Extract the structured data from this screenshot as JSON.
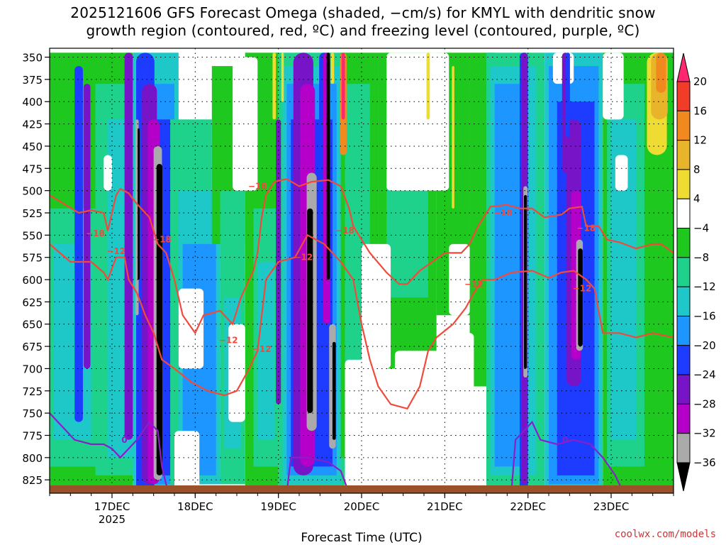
{
  "chart_data": {
    "type": "heatmap",
    "title_line1": "2025121606 GFS Forecast Omega (shaded, −cm/s) for KMYL with dendritic snow",
    "title_line2": "growth region (contoured, red, ºC) and freezing level (contoured, purple, ºC)",
    "xlabel": "Forecast Time (UTC)",
    "credit": "coolwx.com/models",
    "x_ticks": [
      {
        "label": "17DEC",
        "sub": "2025",
        "day": 17
      },
      {
        "label": "18DEC",
        "sub": "",
        "day": 18
      },
      {
        "label": "19DEC",
        "sub": "",
        "day": 19
      },
      {
        "label": "20DEC",
        "sub": "",
        "day": 20
      },
      {
        "label": "21DEC",
        "sub": "",
        "day": 21
      },
      {
        "label": "22DEC",
        "sub": "",
        "day": 22
      },
      {
        "label": "23DEC",
        "sub": "",
        "day": 23
      }
    ],
    "xlim_days": [
      16.25,
      23.75
    ],
    "y_levels": [
      350,
      375,
      400,
      425,
      450,
      475,
      500,
      525,
      550,
      575,
      600,
      625,
      650,
      675,
      700,
      725,
      750,
      775,
      800,
      825
    ],
    "ylim_hpa": [
      340,
      840
    ],
    "colorbar": {
      "labels": [
        "20",
        "16",
        "12",
        "8",
        "4",
        "−4",
        "−8",
        "−12",
        "−16",
        "−20",
        "−24",
        "−28",
        "−32",
        "−36"
      ],
      "colors": [
        "#ff2870",
        "#f03c28",
        "#f08a1e",
        "#e8b42a",
        "#eedc32",
        "#ffffff",
        "#1ec81e",
        "#1ed28c",
        "#1ec8c8",
        "#1e96ff",
        "#1e3cff",
        "#7814c8",
        "#b400c8",
        "#aaaaaa",
        "#000000"
      ]
    },
    "red_contours": {
      "color": "#f04a3c",
      "labels": [
        "−18",
        "−18",
        "−18",
        "−18",
        "−18",
        "−18",
        "−12",
        "−12",
        "−12",
        "−12",
        "−12",
        "−12"
      ],
      "line_18": [
        [
          16.25,
          505
        ],
        [
          16.6,
          525
        ],
        [
          16.75,
          522
        ],
        [
          16.9,
          525
        ],
        [
          16.95,
          545
        ],
        [
          17.05,
          505
        ],
        [
          17.1,
          498
        ],
        [
          17.2,
          503
        ],
        [
          17.3,
          515
        ],
        [
          17.45,
          530
        ],
        [
          17.55,
          560
        ],
        [
          17.65,
          570
        ],
        [
          17.75,
          600
        ],
        [
          17.85,
          640
        ],
        [
          18.0,
          660
        ],
        [
          18.05,
          650
        ],
        [
          18.1,
          640
        ],
        [
          18.3,
          635
        ],
        [
          18.45,
          650
        ],
        [
          18.55,
          620
        ],
        [
          18.7,
          590
        ],
        [
          18.75,
          570
        ],
        [
          18.8,
          530
        ],
        [
          18.85,
          505
        ],
        [
          18.95,
          490
        ],
        [
          19.1,
          487
        ],
        [
          19.25,
          495
        ],
        [
          19.4,
          490
        ],
        [
          19.6,
          488
        ],
        [
          19.75,
          495
        ],
        [
          19.85,
          520
        ],
        [
          19.9,
          540
        ],
        [
          20.0,
          555
        ],
        [
          20.1,
          570
        ],
        [
          20.3,
          592
        ],
        [
          20.45,
          605
        ],
        [
          20.55,
          605
        ],
        [
          20.7,
          590
        ],
        [
          20.85,
          580
        ],
        [
          21.0,
          570
        ],
        [
          21.2,
          570
        ],
        [
          21.3,
          560
        ],
        [
          21.4,
          540
        ],
        [
          21.55,
          518
        ],
        [
          21.75,
          516
        ],
        [
          21.9,
          520
        ],
        [
          22.05,
          520
        ],
        [
          22.2,
          530
        ],
        [
          22.4,
          527
        ],
        [
          22.5,
          520
        ],
        [
          22.65,
          518
        ],
        [
          22.7,
          540
        ],
        [
          22.85,
          540
        ],
        [
          22.95,
          555
        ],
        [
          23.1,
          558
        ],
        [
          23.3,
          565
        ],
        [
          23.5,
          560
        ],
        [
          23.6,
          560
        ],
        [
          23.75,
          570
        ]
      ],
      "line_12": [
        [
          16.25,
          560
        ],
        [
          16.5,
          580
        ],
        [
          16.75,
          580
        ],
        [
          16.9,
          592
        ],
        [
          16.95,
          600
        ],
        [
          17.05,
          575
        ],
        [
          17.15,
          575
        ],
        [
          17.2,
          600
        ],
        [
          17.3,
          615
        ],
        [
          17.4,
          640
        ],
        [
          17.5,
          660
        ],
        [
          17.6,
          690
        ],
        [
          17.75,
          700
        ],
        [
          17.95,
          715
        ],
        [
          18.15,
          725
        ],
        [
          18.35,
          730
        ],
        [
          18.5,
          725
        ],
        [
          18.65,
          700
        ],
        [
          18.75,
          680
        ],
        [
          18.85,
          600
        ],
        [
          19.0,
          580
        ],
        [
          19.2,
          575
        ],
        [
          19.35,
          550
        ],
        [
          19.55,
          560
        ],
        [
          19.75,
          580
        ],
        [
          19.9,
          600
        ],
        [
          20.0,
          650
        ],
        [
          20.1,
          690
        ],
        [
          20.2,
          720
        ],
        [
          20.35,
          740
        ],
        [
          20.55,
          745
        ],
        [
          20.7,
          720
        ],
        [
          20.8,
          680
        ],
        [
          20.9,
          665
        ],
        [
          21.1,
          650
        ],
        [
          21.25,
          632
        ],
        [
          21.35,
          615
        ],
        [
          21.45,
          600
        ],
        [
          21.6,
          600
        ],
        [
          21.8,
          592
        ],
        [
          22.05,
          590
        ],
        [
          22.25,
          598
        ],
        [
          22.4,
          592
        ],
        [
          22.55,
          590
        ],
        [
          22.7,
          600
        ],
        [
          22.8,
          610
        ],
        [
          22.9,
          660
        ],
        [
          23.1,
          660
        ],
        [
          23.3,
          665
        ],
        [
          23.5,
          660
        ],
        [
          23.75,
          665
        ]
      ]
    },
    "purple_contours": {
      "color": "#8a1ec8",
      "labels": [
        "0",
        "0"
      ],
      "line_0": [
        [
          16.25,
          750
        ],
        [
          16.45,
          770
        ],
        [
          16.55,
          780
        ],
        [
          16.75,
          785
        ],
        [
          16.9,
          785
        ],
        [
          17.0,
          790
        ],
        [
          17.1,
          800
        ],
        [
          17.3,
          780
        ],
        [
          17.45,
          760
        ],
        [
          17.55,
          770
        ],
        [
          17.6,
          810
        ],
        [
          17.65,
          830
        ],
        [
          17.7,
          840
        ]
      ],
      "line_0b": [
        [
          19.1,
          840
        ],
        [
          19.15,
          800
        ],
        [
          19.35,
          800
        ],
        [
          19.6,
          805
        ],
        [
          19.75,
          815
        ],
        [
          19.85,
          840
        ]
      ],
      "line_0c": [
        [
          21.8,
          840
        ],
        [
          21.85,
          780
        ],
        [
          21.95,
          770
        ],
        [
          22.05,
          760
        ],
        [
          22.15,
          780
        ],
        [
          22.35,
          785
        ],
        [
          22.55,
          780
        ],
        [
          22.75,
          785
        ],
        [
          22.9,
          800
        ],
        [
          23.05,
          820
        ],
        [
          23.15,
          840
        ]
      ]
    }
  }
}
